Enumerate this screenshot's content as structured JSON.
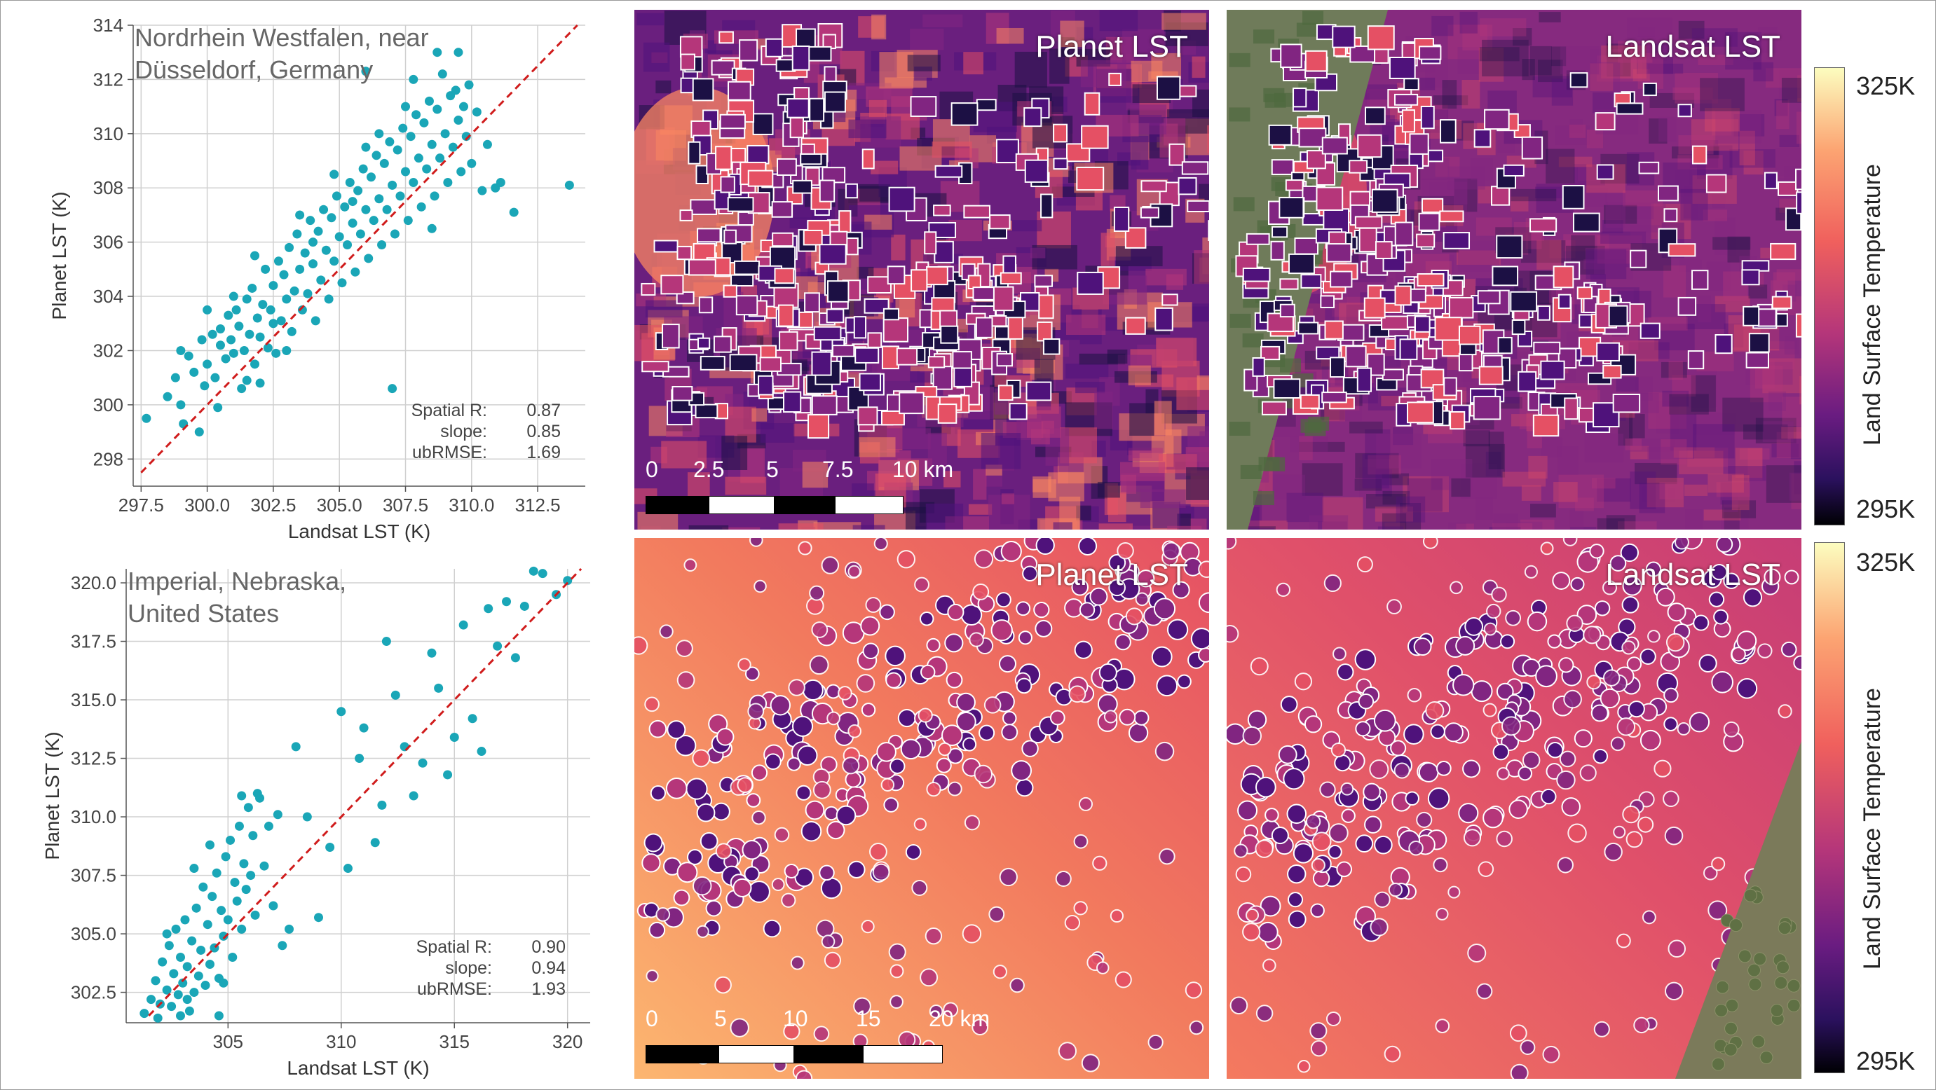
{
  "chart_data": [
    {
      "type": "scatter",
      "title": "Nordrhein Westfalen, near\nDüsseldorf, Germany",
      "title_lines": [
        "Nordrhein Westfalen, near",
        "Düsseldorf, Germany"
      ],
      "xlabel": "Landsat LST (K)",
      "ylabel": "Planet LST (K)",
      "xlim": [
        297.2,
        314.3
      ],
      "ylim": [
        297.0,
        314.0
      ],
      "xticks": [
        "297.5",
        "300.0",
        "302.5",
        "305.0",
        "307.5",
        "310.0",
        "312.5"
      ],
      "yticks": [
        "298",
        "300",
        "302",
        "304",
        "306",
        "308",
        "310",
        "312",
        "314"
      ],
      "grid": true,
      "reference_line": "1:1 (red dashed)",
      "point_color": "#1aa6b7",
      "line_color": "#d01c1c",
      "stats": [
        {
          "label": "Spatial R:",
          "value": "0.87"
        },
        {
          "label": "slope:",
          "value": "0.85"
        },
        {
          "label": "ubRMSE:",
          "value": "1.69"
        }
      ],
      "points": [
        [
          297.7,
          299.5
        ],
        [
          298.5,
          300.3
        ],
        [
          299.0,
          300.0
        ],
        [
          299.1,
          299.3
        ],
        [
          299.3,
          301.8
        ],
        [
          299.5,
          301.2
        ],
        [
          299.7,
          299.0
        ],
        [
          299.9,
          300.7
        ],
        [
          300.0,
          301.5
        ],
        [
          300.2,
          302.6
        ],
        [
          300.3,
          301.0
        ],
        [
          300.4,
          299.9
        ],
        [
          300.5,
          302.2
        ],
        [
          300.7,
          301.7
        ],
        [
          300.8,
          303.3
        ],
        [
          300.9,
          302.4
        ],
        [
          301.0,
          301.9
        ],
        [
          301.1,
          303.5
        ],
        [
          301.2,
          302.9
        ],
        [
          301.3,
          300.6
        ],
        [
          301.4,
          302.0
        ],
        [
          301.5,
          303.9
        ],
        [
          301.6,
          302.6
        ],
        [
          301.7,
          304.3
        ],
        [
          301.8,
          301.5
        ],
        [
          301.9,
          303.2
        ],
        [
          302.0,
          302.5
        ],
        [
          302.1,
          303.7
        ],
        [
          302.2,
          305.0
        ],
        [
          302.3,
          302.1
        ],
        [
          302.4,
          303.5
        ],
        [
          302.5,
          304.4
        ],
        [
          302.6,
          301.9
        ],
        [
          302.7,
          305.3
        ],
        [
          302.8,
          303.1
        ],
        [
          302.9,
          304.8
        ],
        [
          303.0,
          303.9
        ],
        [
          303.1,
          305.8
        ],
        [
          303.2,
          302.7
        ],
        [
          303.3,
          304.2
        ],
        [
          303.4,
          306.3
        ],
        [
          303.5,
          305.0
        ],
        [
          303.6,
          303.5
        ],
        [
          303.7,
          305.6
        ],
        [
          303.8,
          304.1
        ],
        [
          303.9,
          306.8
        ],
        [
          304.0,
          305.2
        ],
        [
          304.1,
          303.1
        ],
        [
          304.2,
          306.4
        ],
        [
          304.3,
          304.6
        ],
        [
          304.4,
          307.2
        ],
        [
          304.5,
          305.7
        ],
        [
          304.6,
          303.9
        ],
        [
          304.7,
          306.9
        ],
        [
          304.8,
          305.3
        ],
        [
          304.9,
          307.7
        ],
        [
          305.0,
          306.2
        ],
        [
          305.1,
          304.5
        ],
        [
          305.2,
          307.3
        ],
        [
          305.3,
          305.9
        ],
        [
          305.4,
          308.2
        ],
        [
          305.5,
          306.7
        ],
        [
          305.6,
          304.9
        ],
        [
          305.7,
          307.9
        ],
        [
          305.8,
          306.3
        ],
        [
          305.9,
          308.7
        ],
        [
          306.0,
          307.2
        ],
        [
          306.1,
          305.4
        ],
        [
          306.2,
          308.4
        ],
        [
          306.3,
          306.8
        ],
        [
          306.4,
          309.2
        ],
        [
          306.5,
          307.6
        ],
        [
          306.6,
          305.9
        ],
        [
          306.7,
          308.9
        ],
        [
          306.8,
          307.2
        ],
        [
          306.9,
          309.7
        ],
        [
          307.0,
          308.1
        ],
        [
          307.1,
          306.3
        ],
        [
          307.2,
          309.4
        ],
        [
          307.3,
          307.7
        ],
        [
          307.4,
          310.2
        ],
        [
          307.5,
          308.6
        ],
        [
          307.6,
          306.8
        ],
        [
          307.7,
          309.9
        ],
        [
          307.8,
          308.2
        ],
        [
          307.9,
          310.7
        ],
        [
          308.0,
          309.1
        ],
        [
          308.1,
          307.3
        ],
        [
          308.2,
          310.4
        ],
        [
          308.3,
          308.7
        ],
        [
          308.4,
          311.2
        ],
        [
          308.5,
          309.6
        ],
        [
          308.6,
          307.7
        ],
        [
          308.7,
          310.9
        ],
        [
          308.8,
          309.1
        ],
        [
          308.9,
          312.2
        ],
        [
          309.0,
          310.0
        ],
        [
          309.1,
          308.2
        ],
        [
          309.2,
          311.4
        ],
        [
          309.3,
          309.5
        ],
        [
          309.4,
          311.6
        ],
        [
          309.5,
          310.5
        ],
        [
          309.6,
          308.6
        ],
        [
          309.7,
          311.0
        ],
        [
          309.8,
          309.9
        ],
        [
          309.9,
          311.8
        ],
        [
          310.0,
          308.9
        ],
        [
          310.2,
          310.8
        ],
        [
          310.4,
          307.9
        ],
        [
          310.6,
          309.6
        ],
        [
          310.9,
          308.0
        ],
        [
          311.1,
          308.2
        ],
        [
          311.6,
          307.1
        ],
        [
          313.7,
          308.1
        ],
        [
          307.0,
          300.6
        ],
        [
          308.7,
          313.0
        ],
        [
          306.0,
          312.3
        ],
        [
          300.5,
          302.8
        ],
        [
          301.0,
          304.0
        ],
        [
          299.8,
          302.4
        ],
        [
          302.0,
          300.8
        ],
        [
          303.0,
          302.0
        ],
        [
          302.5,
          303.0
        ],
        [
          301.5,
          300.9
        ],
        [
          304.0,
          306.0
        ],
        [
          305.5,
          307.5
        ],
        [
          306.5,
          310.0
        ],
        [
          307.5,
          311.0
        ],
        [
          308.5,
          306.5
        ],
        [
          309.5,
          313.0
        ],
        [
          303.5,
          307.0
        ],
        [
          300.0,
          303.5
        ],
        [
          299.0,
          302.0
        ],
        [
          298.8,
          301.0
        ],
        [
          301.8,
          305.5
        ],
        [
          304.8,
          308.5
        ],
        [
          306.0,
          309.5
        ],
        [
          307.8,
          312.0
        ]
      ]
    },
    {
      "type": "scatter",
      "title": "Imperial, Nebraska,\nUnited States",
      "title_lines": [
        "Imperial, Nebraska,",
        "United States"
      ],
      "xlabel": "Landsat LST (K)",
      "ylabel": "Planet LST (K)",
      "xlim": [
        300.5,
        321.0
      ],
      "ylim": [
        301.2,
        320.6
      ],
      "xticks": [
        "305",
        "310",
        "315",
        "320"
      ],
      "yticks": [
        "302.5",
        "305.0",
        "307.5",
        "310.0",
        "312.5",
        "315.0",
        "317.5",
        "320.0"
      ],
      "grid": true,
      "reference_line": "1:1 (red dashed)",
      "point_color": "#1aa6b7",
      "line_color": "#d01c1c",
      "stats": [
        {
          "label": "Spatial R:",
          "value": "0.90"
        },
        {
          "label": "slope:",
          "value": "0.94"
        },
        {
          "label": "ubRMSE:",
          "value": "1.93"
        }
      ],
      "points": [
        [
          301.3,
          301.6
        ],
        [
          301.6,
          302.2
        ],
        [
          301.8,
          303.0
        ],
        [
          302.0,
          302.0
        ],
        [
          302.1,
          303.8
        ],
        [
          302.3,
          302.6
        ],
        [
          302.4,
          304.5
        ],
        [
          302.5,
          301.9
        ],
        [
          302.6,
          303.3
        ],
        [
          302.7,
          305.2
        ],
        [
          302.8,
          302.4
        ],
        [
          302.9,
          304.0
        ],
        [
          303.0,
          302.9
        ],
        [
          303.1,
          305.6
        ],
        [
          303.2,
          303.6
        ],
        [
          303.3,
          301.7
        ],
        [
          303.4,
          304.7
        ],
        [
          303.5,
          302.5
        ],
        [
          303.6,
          306.1
        ],
        [
          303.7,
          303.2
        ],
        [
          303.8,
          304.3
        ],
        [
          303.9,
          307.0
        ],
        [
          304.0,
          302.8
        ],
        [
          304.1,
          305.4
        ],
        [
          304.2,
          303.7
        ],
        [
          304.3,
          306.6
        ],
        [
          304.4,
          304.4
        ],
        [
          304.5,
          307.6
        ],
        [
          304.6,
          303.1
        ],
        [
          304.7,
          306.0
        ],
        [
          304.8,
          304.9
        ],
        [
          304.9,
          308.3
        ],
        [
          305.0,
          305.6
        ],
        [
          305.1,
          309.0
        ],
        [
          305.2,
          304.0
        ],
        [
          305.3,
          307.2
        ],
        [
          305.4,
          306.4
        ],
        [
          305.5,
          309.6
        ],
        [
          305.6,
          305.2
        ],
        [
          305.7,
          308.0
        ],
        [
          305.8,
          306.9
        ],
        [
          305.9,
          310.4
        ],
        [
          306.0,
          307.5
        ],
        [
          306.1,
          309.2
        ],
        [
          306.2,
          305.8
        ],
        [
          306.4,
          310.8
        ],
        [
          306.6,
          307.9
        ],
        [
          306.8,
          309.6
        ],
        [
          307.0,
          306.2
        ],
        [
          307.2,
          310.1
        ],
        [
          307.4,
          304.5
        ],
        [
          307.7,
          305.2
        ],
        [
          308.0,
          313.0
        ],
        [
          308.5,
          310.0
        ],
        [
          309.0,
          305.7
        ],
        [
          309.5,
          308.7
        ],
        [
          310.0,
          314.5
        ],
        [
          310.3,
          307.8
        ],
        [
          310.8,
          312.5
        ],
        [
          311.0,
          313.8
        ],
        [
          311.5,
          308.9
        ],
        [
          311.8,
          310.5
        ],
        [
          312.0,
          317.5
        ],
        [
          312.4,
          315.2
        ],
        [
          312.8,
          313.0
        ],
        [
          313.2,
          310.9
        ],
        [
          313.6,
          312.3
        ],
        [
          314.0,
          317.0
        ],
        [
          314.3,
          315.5
        ],
        [
          314.7,
          311.8
        ],
        [
          315.0,
          313.4
        ],
        [
          315.4,
          318.2
        ],
        [
          315.8,
          314.2
        ],
        [
          316.2,
          312.8
        ],
        [
          316.5,
          318.9
        ],
        [
          316.9,
          317.3
        ],
        [
          317.3,
          319.2
        ],
        [
          317.7,
          316.8
        ],
        [
          318.1,
          319.0
        ],
        [
          318.5,
          320.5
        ],
        [
          318.9,
          320.4
        ],
        [
          319.5,
          319.5
        ],
        [
          320.0,
          320.1
        ],
        [
          302.3,
          305.0
        ],
        [
          303.5,
          307.8
        ],
        [
          304.2,
          308.8
        ],
        [
          305.6,
          310.9
        ],
        [
          306.3,
          311.0
        ],
        [
          302.9,
          301.5
        ],
        [
          301.9,
          301.4
        ],
        [
          303.2,
          302.2
        ],
        [
          304.8,
          302.9
        ],
        [
          304.6,
          301.5
        ]
      ]
    }
  ],
  "maps": [
    {
      "label": "Planet LST",
      "scale_ticks": [
        "0",
        "2.5",
        "5",
        "7.5",
        "10 km"
      ]
    },
    {
      "label": "Landsat LST"
    },
    {
      "label": "Planet LST",
      "scale_ticks": [
        "0",
        "5",
        "10",
        "15",
        "20 km"
      ]
    },
    {
      "label": "Landsat LST"
    }
  ],
  "colorbars": [
    {
      "max": "325K",
      "min": "295K",
      "label": "Land Surface Temperature",
      "colormap": "magma"
    },
    {
      "max": "325K",
      "min": "295K",
      "label": "Land Surface Temperature",
      "colormap": "magma"
    }
  ]
}
